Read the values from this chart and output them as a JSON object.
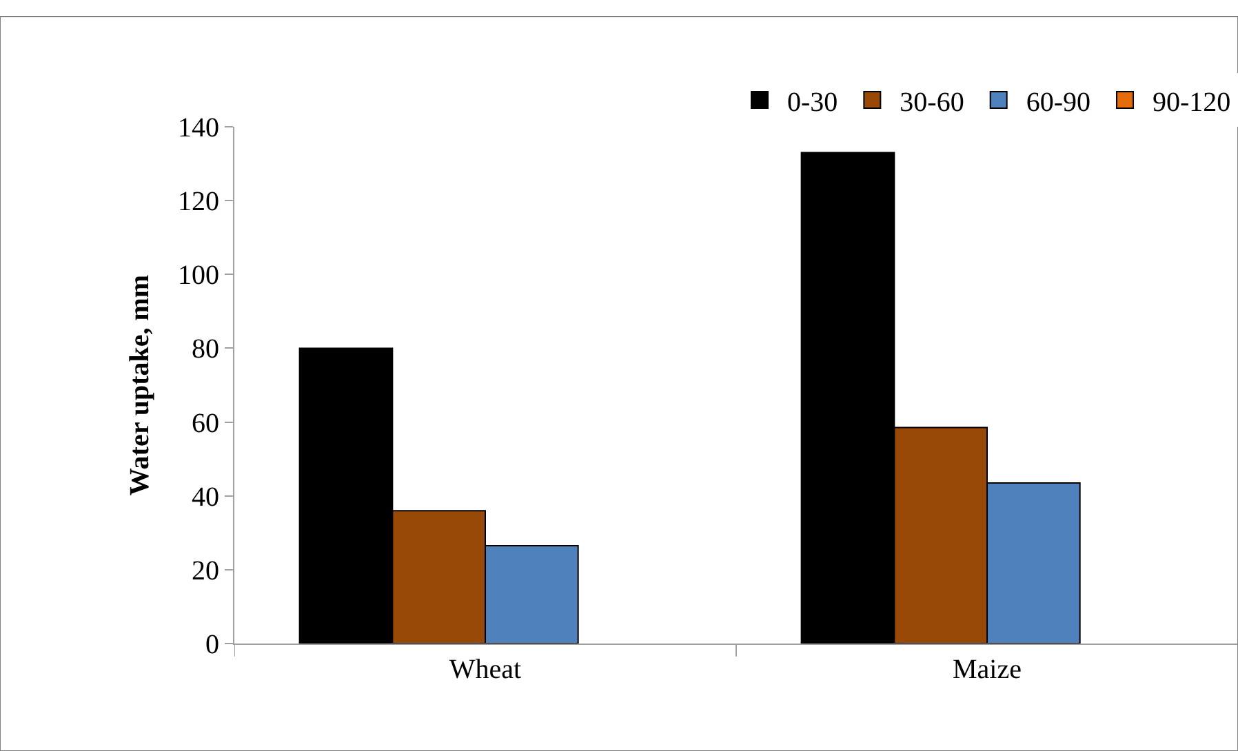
{
  "chart_data": {
    "type": "bar",
    "ylabel": "Water uptake, mm",
    "categories": [
      "Wheat",
      "Maize"
    ],
    "series": [
      {
        "name": "0-30",
        "color": "#000000",
        "values": [
          80,
          133
        ]
      },
      {
        "name": "30-60",
        "color": "#984807",
        "values": [
          36,
          58.5
        ]
      },
      {
        "name": "60-90",
        "color": "#4f81bd",
        "values": [
          26.5,
          43.5
        ]
      },
      {
        "name": "90-120",
        "color": "#e46c0a",
        "values": [
          null,
          null
        ]
      }
    ],
    "ylim": [
      0,
      140
    ],
    "yticks": [
      0,
      20,
      40,
      60,
      80,
      100,
      120,
      140
    ],
    "legend": "top right"
  }
}
